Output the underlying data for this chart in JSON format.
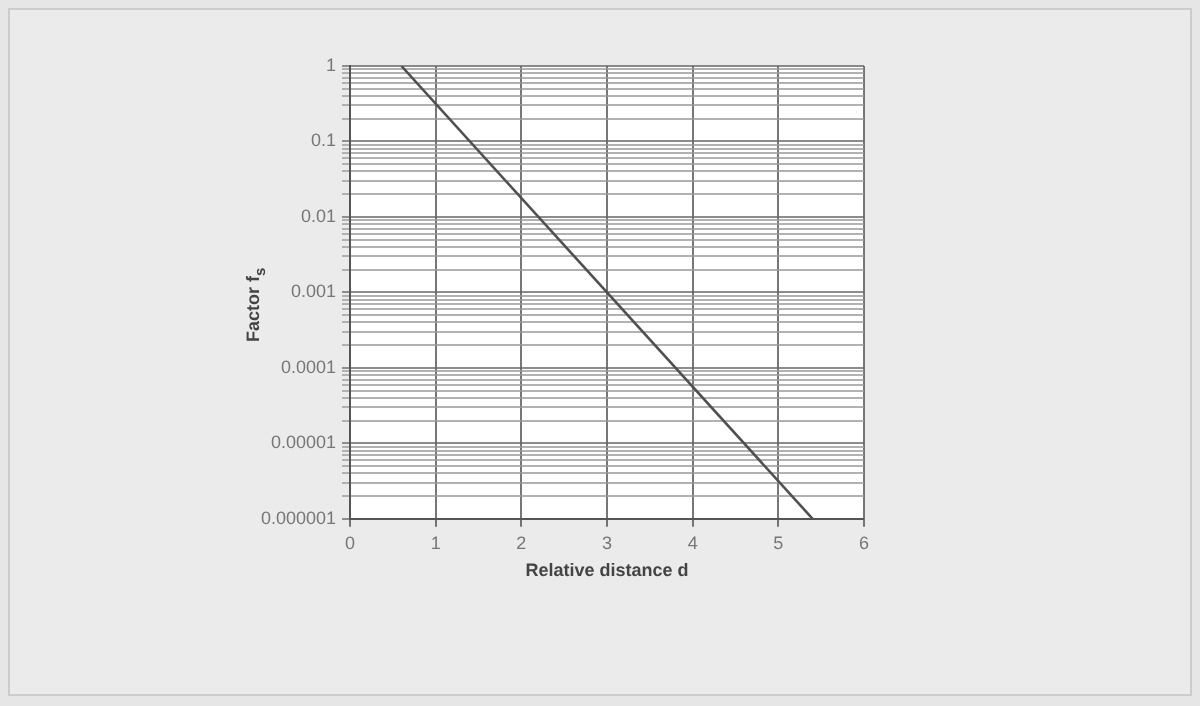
{
  "chart_data": {
    "type": "line",
    "xlabel": "Relative distance d",
    "ylabel": "Factor f$_{s}$",
    "x": [
      0.6,
      3,
      5.4
    ],
    "series": [
      {
        "color": "#505050",
        "values": [
          1,
          0.001,
          1e-06
        ]
      }
    ],
    "xlim": [
      0,
      6
    ],
    "xticks": [
      0,
      1,
      2,
      3,
      4,
      5,
      6
    ],
    "ylim": [
      1e-06,
      1
    ],
    "yticks": [
      {
        "value": 1e-06,
        "label": "0.000001"
      },
      {
        "value": 2e-06,
        "label": null
      },
      {
        "value": 3e-06,
        "label": null
      },
      {
        "value": 4e-06,
        "label": null
      },
      {
        "value": 5e-06,
        "label": null
      },
      {
        "value": 6e-06,
        "label": null
      },
      {
        "value": 7e-06,
        "label": null
      },
      {
        "value": 8e-06,
        "label": null
      },
      {
        "value": 9e-06,
        "label": null
      },
      {
        "value": 1e-05,
        "label": "0.00001"
      },
      {
        "value": 2e-05,
        "label": null
      },
      {
        "value": 3e-05,
        "label": null
      },
      {
        "value": 4e-05,
        "label": null
      },
      {
        "value": 5e-05,
        "label": null
      },
      {
        "value": 6e-05,
        "label": null
      },
      {
        "value": 7e-05,
        "label": null
      },
      {
        "value": 8e-05,
        "label": null
      },
      {
        "value": 9e-05,
        "label": null
      },
      {
        "value": 0.0001,
        "label": "0.0001"
      },
      {
        "value": 0.0002,
        "label": null
      },
      {
        "value": 0.0003,
        "label": null
      },
      {
        "value": 0.0004,
        "label": null
      },
      {
        "value": 0.0005,
        "label": null
      },
      {
        "value": 0.0006,
        "label": null
      },
      {
        "value": 0.0007,
        "label": null
      },
      {
        "value": 0.0008,
        "label": null
      },
      {
        "value": 0.0009,
        "label": null
      },
      {
        "value": 0.001,
        "label": "0.001"
      },
      {
        "value": 0.002,
        "label": null
      },
      {
        "value": 0.003,
        "label": null
      },
      {
        "value": 0.004,
        "label": null
      },
      {
        "value": 0.005,
        "label": null
      },
      {
        "value": 0.006,
        "label": null
      },
      {
        "value": 0.007,
        "label": null
      },
      {
        "value": 0.008,
        "label": null
      },
      {
        "value": 0.009,
        "label": null
      },
      {
        "value": 0.01,
        "label": "0.01"
      },
      {
        "value": 0.02,
        "label": null
      },
      {
        "value": 0.03,
        "label": null
      },
      {
        "value": 0.04,
        "label": null
      },
      {
        "value": 0.05,
        "label": null
      },
      {
        "value": 0.06,
        "label": null
      },
      {
        "value": 0.07,
        "label": null
      },
      {
        "value": 0.08,
        "label": null
      },
      {
        "value": 0.09,
        "label": null
      },
      {
        "value": 0.1,
        "label": "0.1"
      },
      {
        "value": 0.2,
        "label": null
      },
      {
        "value": 0.3,
        "label": null
      },
      {
        "value": 0.4,
        "label": null
      },
      {
        "value": 0.5,
        "label": null
      },
      {
        "value": 0.6,
        "label": null
      },
      {
        "value": 0.7,
        "label": null
      },
      {
        "value": 0.8,
        "label": null
      },
      {
        "value": 0.9,
        "label": null
      },
      {
        "value": 1,
        "label": "1"
      }
    ],
    "log": "y",
    "grid": true,
    "marker": "none",
    "line_style": "solid",
    "legend": false
  }
}
